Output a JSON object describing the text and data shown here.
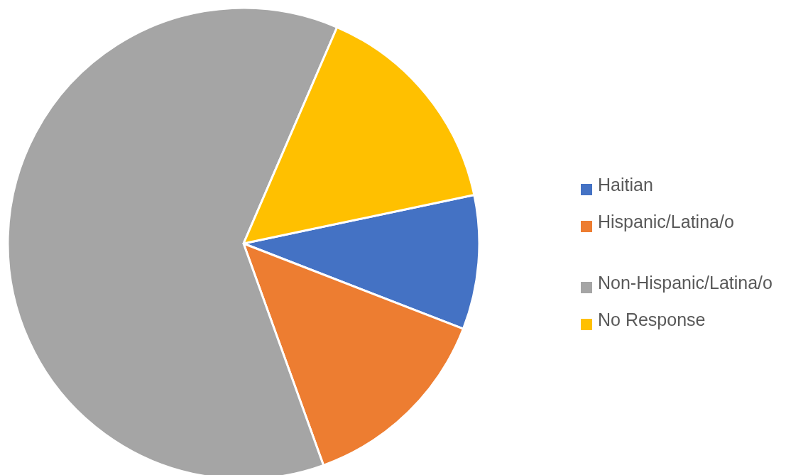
{
  "chart_data": {
    "type": "pie",
    "categories": [
      "Haitian",
      "Hispanic/Latina/o",
      "Non-Hispanic/Latina/o",
      "No Response"
    ],
    "values": [
      9.2,
      13.6,
      62.0,
      15.2
    ],
    "colors": [
      "#4472c4",
      "#ed7d31",
      "#a5a5a5",
      "#ffc000"
    ],
    "legend": "right"
  }
}
